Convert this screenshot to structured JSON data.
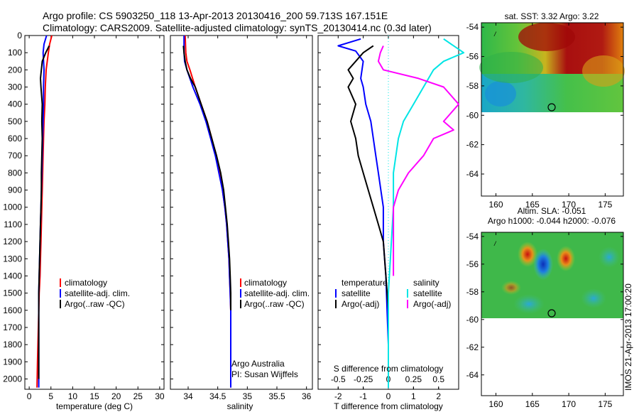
{
  "header": {
    "line1": "Argo profile: CS 5903250_118 13-Apr-2013 20130416_200 59.713S 167.151E",
    "line2": "Climatology: CARS2009. Satellite-adjusted climatology: synTS_20130414.nc (0.3d later)"
  },
  "credit": "IMOS 21-Apr-2013 17:00:20",
  "colors": {
    "climatology": "#ff0000",
    "satellite": "#0000ff",
    "argo": "#000000",
    "sal_satellite": "#00e5e5",
    "sal_argo": "#ff00ff"
  },
  "chart_data": [
    {
      "type": "line",
      "xlabel": "temperature (deg C)",
      "ylabel": "",
      "xlim": [
        -1,
        31
      ],
      "ylim": [
        2060,
        0
      ],
      "grid": false,
      "xticks": [
        "0",
        "5",
        "10",
        "15",
        "20",
        "25",
        "30"
      ],
      "yticks": [
        "0",
        "100",
        "200",
        "300",
        "400",
        "500",
        "600",
        "700",
        "800",
        "900",
        "1000",
        "1100",
        "1200",
        "1300",
        "1400",
        "1500",
        "1600",
        "1700",
        "1800",
        "1900",
        "2000"
      ],
      "legend": {
        "placement": "lower-center",
        "entries": [
          "climatology",
          "satellite-adj. clim.",
          "Argo(..raw -QC)"
        ]
      },
      "series": [
        {
          "name": "climatology",
          "x": [
            5.2,
            4.7,
            4.4,
            3.9,
            3.7,
            3.6,
            3.4,
            3.3,
            3.2,
            3.1,
            3.0,
            2.9,
            2.8,
            2.7,
            2.6,
            2.5,
            2.3,
            2.2,
            2.0,
            1.9,
            1.8
          ],
          "y": [
            0,
            50,
            100,
            200,
            300,
            400,
            500,
            600,
            700,
            800,
            900,
            1000,
            1100,
            1200,
            1300,
            1400,
            1500,
            1600,
            1800,
            1900,
            2050
          ]
        },
        {
          "name": "satellite-adj. clim.",
          "x": [
            4.0,
            3.4,
            3.2,
            3.4,
            3.3,
            3.3,
            3.2,
            3.1,
            3.0,
            2.9,
            2.8,
            2.7,
            2.6,
            2.5,
            2.4,
            2.3,
            2.2,
            2.2,
            2.2,
            2.2,
            2.2
          ],
          "y": [
            0,
            50,
            100,
            200,
            300,
            400,
            500,
            600,
            700,
            800,
            900,
            1000,
            1100,
            1200,
            1300,
            1400,
            1500,
            1600,
            1800,
            1900,
            2050
          ]
        },
        {
          "name": "Argo(..raw -QC)",
          "x": [
            4.6,
            3.8,
            3.0,
            2.6,
            2.7,
            3.0,
            2.9,
            3.0,
            2.9,
            2.8,
            2.8,
            2.7,
            2.6,
            2.5,
            2.4,
            2.3,
            2.2,
            2.2,
            2.2,
            2.2
          ],
          "y": [
            60,
            100,
            150,
            250,
            300,
            400,
            500,
            600,
            700,
            800,
            900,
            1000,
            1100,
            1200,
            1300,
            1400,
            1500,
            1600,
            1800,
            2000
          ]
        }
      ]
    },
    {
      "type": "line",
      "xlabel": "salinity",
      "xlim": [
        33.7,
        36.1
      ],
      "ylim": [
        2060,
        0
      ],
      "grid": false,
      "xticks": [
        "34",
        "34.5",
        "35",
        "35.5",
        "36"
      ],
      "legend": {
        "placement": "lower-center",
        "entries": [
          "climatology",
          "satellite-adj. clim.",
          "Argo(..raw -QC)"
        ]
      },
      "annotations": [
        "Argo Australia",
        "PI: Susan Wijffels"
      ],
      "series": [
        {
          "name": "climatology",
          "x": [
            33.95,
            33.96,
            33.98,
            34.03,
            34.12,
            34.22,
            34.32,
            34.4,
            34.47,
            34.53,
            34.58,
            34.62,
            34.65,
            34.67,
            34.69,
            34.7,
            34.71,
            34.72,
            34.72,
            34.72
          ],
          "y": [
            0,
            100,
            150,
            200,
            300,
            400,
            500,
            600,
            700,
            800,
            900,
            1000,
            1100,
            1200,
            1300,
            1400,
            1500,
            1600,
            1800,
            2050
          ]
        },
        {
          "name": "satellite-adj. clim.",
          "x": [
            33.93,
            33.93,
            33.94,
            33.98,
            34.08,
            34.2,
            34.3,
            34.38,
            34.46,
            34.52,
            34.58,
            34.62,
            34.65,
            34.67,
            34.69,
            34.7,
            34.71,
            34.72,
            34.72,
            34.72
          ],
          "y": [
            0,
            100,
            150,
            200,
            300,
            400,
            500,
            600,
            700,
            800,
            900,
            1000,
            1100,
            1200,
            1300,
            1400,
            1500,
            1600,
            1800,
            2050
          ]
        },
        {
          "name": "Argo(..raw -QC)",
          "x": [
            33.92,
            33.93,
            33.95,
            33.98,
            34.04,
            34.12,
            34.22,
            34.32,
            34.4,
            34.48,
            34.55,
            34.6,
            34.63,
            34.66,
            34.68,
            34.7,
            34.71,
            34.72,
            34.72
          ],
          "y": [
            60,
            100,
            150,
            200,
            250,
            300,
            400,
            500,
            600,
            700,
            800,
            900,
            1000,
            1100,
            1200,
            1300,
            1400,
            1500,
            1600
          ]
        }
      ]
    },
    {
      "type": "line",
      "xlabel": "T difference from climatology",
      "xlabel_top": "S difference from climatology",
      "xlim": [
        -2.8,
        2.8
      ],
      "ylim": [
        2060,
        0
      ],
      "grid": false,
      "xticks": [
        "-2",
        "-1",
        "0",
        "1",
        "2"
      ],
      "xticks_top": [
        "-0.5",
        "-0.25",
        "0",
        "0.25",
        "0.5"
      ],
      "legend": {
        "placement": "lower-center",
        "temperature_title": "temperature",
        "salinity_title": "salinity",
        "entries": [
          "satellite",
          "Argo(-adj)",
          "satellite",
          "Argo(-adj)"
        ]
      },
      "series": [
        {
          "name": "temperature satellite",
          "x": [
            -1.1,
            -2.0,
            -1.3,
            -1.0,
            -1.1,
            -1.0,
            -0.9,
            -0.7,
            -0.6,
            -0.5,
            -0.4,
            -0.3,
            -0.2,
            -0.2,
            -0.1,
            -0.05,
            0,
            0
          ],
          "y": [
            20,
            60,
            90,
            150,
            250,
            300,
            400,
            500,
            600,
            700,
            800,
            900,
            1000,
            1200,
            1400,
            1600,
            1800,
            2050
          ]
        },
        {
          "name": "temperature Argo(-adj)",
          "x": [
            -0.6,
            -1.0,
            -1.3,
            -1.6,
            -1.4,
            -1.6,
            -1.3,
            -1.5,
            -1.3,
            -1.2,
            -1.0,
            -0.8,
            -0.6,
            -0.4,
            -0.2,
            -0.1,
            0,
            0
          ],
          "y": [
            60,
            100,
            150,
            200,
            250,
            300,
            400,
            500,
            600,
            700,
            800,
            900,
            1000,
            1100,
            1200,
            1400,
            1600,
            2000
          ]
        },
        {
          "name": "salinity satellite",
          "x": [
            0.55,
            0.75,
            0.55,
            0.45,
            0.35,
            0.25,
            0.15,
            0.1,
            0.05,
            0.05,
            0,
            0
          ],
          "y": [
            20,
            100,
            150,
            200,
            300,
            400,
            500,
            600,
            800,
            1000,
            1500,
            2050
          ]
        },
        {
          "name": "salinity Argo(-adj)",
          "x": [
            -0.05,
            -0.08,
            -0.1,
            -0.05,
            0.3,
            0.55,
            0.7,
            0.55,
            0.65,
            0.45,
            0.35,
            0.2,
            0.1,
            0.05,
            0.05,
            0.05
          ],
          "y": [
            60,
            100,
            150,
            200,
            250,
            300,
            400,
            500,
            550,
            600,
            700,
            800,
            900,
            1000,
            1200,
            1400
          ]
        }
      ]
    },
    {
      "type": "heatmap",
      "title": "sat. SST: 3.32 Argo: 3.22",
      "xlim": [
        158,
        177.5
      ],
      "ylim": [
        -65.5,
        -53.7
      ],
      "xticks": [
        "160",
        "165",
        "170",
        "175"
      ],
      "yticks": [
        "-54",
        "-56",
        "-58",
        "-60",
        "-62",
        "-64"
      ],
      "data_extent_lat": [
        -60,
        -53.7
      ],
      "marker": {
        "lon": 167.151,
        "lat": -59.713
      }
    },
    {
      "type": "heatmap",
      "title": "Altim. SLA: -0.051",
      "subtitle": "Argo h1000: -0.044 h2000: -0.076",
      "xlim": [
        158,
        177.5
      ],
      "ylim": [
        -65.5,
        -53.7
      ],
      "xticks": [
        "160",
        "165",
        "170",
        "175"
      ],
      "yticks": [
        "-54",
        "-56",
        "-58",
        "-60",
        "-62",
        "-64"
      ],
      "data_extent_lat": [
        -60,
        -53.7
      ],
      "marker": {
        "lon": 167.151,
        "lat": -59.713
      }
    }
  ]
}
